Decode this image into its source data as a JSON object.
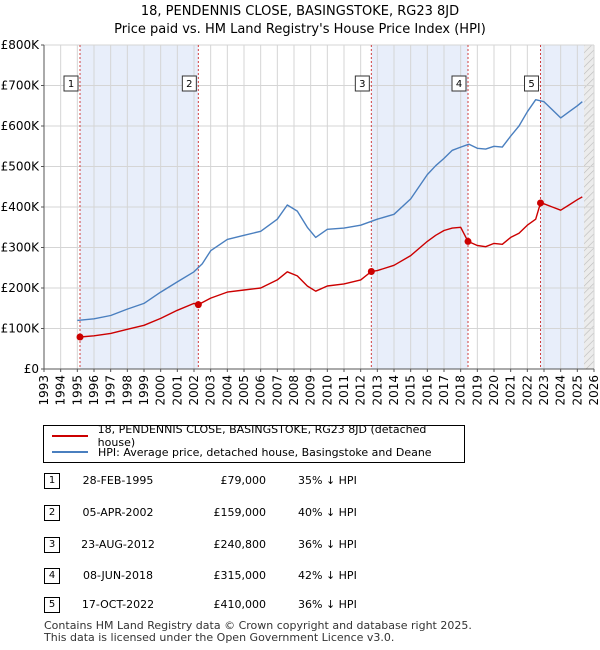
{
  "title_line1": "18, PENDENNIS CLOSE, BASINGSTOKE, RG23 8JD",
  "title_line2": "Price paid vs. HM Land Registry's House Price Index (HPI)",
  "chart_data": {
    "type": "line",
    "xlim": [
      1993,
      2026
    ],
    "ylim": [
      0,
      800000
    ],
    "x_ticks": [
      "1993",
      "1994",
      "1995",
      "1996",
      "1997",
      "1998",
      "1999",
      "2000",
      "2001",
      "2002",
      "2003",
      "2004",
      "2005",
      "2006",
      "2007",
      "2008",
      "2009",
      "2010",
      "2011",
      "2012",
      "2013",
      "2014",
      "2015",
      "2016",
      "2017",
      "2018",
      "2019",
      "2020",
      "2021",
      "2022",
      "2023",
      "2024",
      "2025",
      "2026"
    ],
    "y_ticks": [
      {
        "value": 0,
        "label": "£0"
      },
      {
        "value": 100000,
        "label": "£100K"
      },
      {
        "value": 200000,
        "label": "£200K"
      },
      {
        "value": 300000,
        "label": "£300K"
      },
      {
        "value": 400000,
        "label": "£400K"
      },
      {
        "value": 500000,
        "label": "£500K"
      },
      {
        "value": 600000,
        "label": "£600K"
      },
      {
        "value": 700000,
        "label": "£700K"
      },
      {
        "value": 800000,
        "label": "£800K"
      }
    ],
    "shaded_ranges": [
      [
        1995.16,
        2002.26
      ],
      [
        2012.64,
        2018.44
      ],
      [
        2022.79,
        2025.4
      ]
    ],
    "hatch_from": 2025.4,
    "series": [
      {
        "name": "HPI: Average price, detached house, Basingstoke and Deane",
        "color": "#4a7fbf",
        "points": [
          [
            1995.0,
            120000
          ],
          [
            1996.0,
            124000
          ],
          [
            1997.0,
            132000
          ],
          [
            1998.0,
            148000
          ],
          [
            1999.0,
            162000
          ],
          [
            2000.0,
            190000
          ],
          [
            2001.0,
            215000
          ],
          [
            2002.0,
            240000
          ],
          [
            2002.5,
            260000
          ],
          [
            2003.0,
            292000
          ],
          [
            2004.0,
            320000
          ],
          [
            2005.0,
            330000
          ],
          [
            2006.0,
            340000
          ],
          [
            2007.0,
            370000
          ],
          [
            2007.6,
            405000
          ],
          [
            2008.2,
            390000
          ],
          [
            2008.8,
            350000
          ],
          [
            2009.3,
            325000
          ],
          [
            2010.0,
            345000
          ],
          [
            2011.0,
            348000
          ],
          [
            2012.0,
            355000
          ],
          [
            2013.0,
            370000
          ],
          [
            2014.0,
            382000
          ],
          [
            2015.0,
            420000
          ],
          [
            2016.0,
            480000
          ],
          [
            2016.5,
            502000
          ],
          [
            2017.0,
            520000
          ],
          [
            2017.5,
            540000
          ],
          [
            2018.0,
            548000
          ],
          [
            2018.5,
            555000
          ],
          [
            2019.0,
            545000
          ],
          [
            2019.5,
            543000
          ],
          [
            2020.0,
            550000
          ],
          [
            2020.5,
            548000
          ],
          [
            2021.0,
            575000
          ],
          [
            2021.5,
            600000
          ],
          [
            2022.0,
            635000
          ],
          [
            2022.5,
            665000
          ],
          [
            2023.0,
            660000
          ],
          [
            2023.5,
            640000
          ],
          [
            2024.0,
            620000
          ],
          [
            2024.5,
            635000
          ],
          [
            2025.0,
            650000
          ],
          [
            2025.3,
            660000
          ]
        ]
      },
      {
        "name": "18, PENDENNIS CLOSE, BASINGSTOKE, RG23 8JD (detached house)",
        "color": "#cc0000",
        "points": [
          [
            1995.16,
            79000
          ],
          [
            1996.0,
            82000
          ],
          [
            1997.0,
            88000
          ],
          [
            1998.0,
            98000
          ],
          [
            1999.0,
            108000
          ],
          [
            2000.0,
            125000
          ],
          [
            2001.0,
            145000
          ],
          [
            2002.0,
            162000
          ],
          [
            2002.26,
            159000
          ],
          [
            2003.0,
            175000
          ],
          [
            2004.0,
            190000
          ],
          [
            2005.0,
            195000
          ],
          [
            2006.0,
            200000
          ],
          [
            2007.0,
            220000
          ],
          [
            2007.6,
            240000
          ],
          [
            2008.2,
            230000
          ],
          [
            2008.8,
            205000
          ],
          [
            2009.3,
            192000
          ],
          [
            2010.0,
            205000
          ],
          [
            2011.0,
            210000
          ],
          [
            2012.0,
            220000
          ],
          [
            2012.64,
            240800
          ],
          [
            2013.0,
            243000
          ],
          [
            2014.0,
            256000
          ],
          [
            2015.0,
            280000
          ],
          [
            2016.0,
            315000
          ],
          [
            2016.5,
            330000
          ],
          [
            2017.0,
            342000
          ],
          [
            2017.5,
            348000
          ],
          [
            2018.0,
            350000
          ],
          [
            2018.44,
            315000
          ],
          [
            2019.0,
            305000
          ],
          [
            2019.5,
            302000
          ],
          [
            2020.0,
            310000
          ],
          [
            2020.5,
            308000
          ],
          [
            2021.0,
            325000
          ],
          [
            2021.5,
            335000
          ],
          [
            2022.0,
            355000
          ],
          [
            2022.5,
            370000
          ],
          [
            2022.79,
            410000
          ],
          [
            2023.0,
            408000
          ],
          [
            2023.5,
            400000
          ],
          [
            2024.0,
            392000
          ],
          [
            2024.5,
            405000
          ],
          [
            2025.0,
            418000
          ],
          [
            2025.3,
            425000
          ]
        ]
      }
    ],
    "sale_markers": [
      {
        "label": "1",
        "x": 1995.16,
        "y": 79000
      },
      {
        "label": "2",
        "x": 2002.26,
        "y": 159000
      },
      {
        "label": "3",
        "x": 2012.64,
        "y": 240800
      },
      {
        "label": "4",
        "x": 2018.44,
        "y": 315000
      },
      {
        "label": "5",
        "x": 2022.79,
        "y": 410000
      }
    ]
  },
  "legend": {
    "red_label": "18, PENDENNIS CLOSE, BASINGSTOKE, RG23 8JD (detached house)",
    "blue_label": "HPI: Average price, detached house, Basingstoke and Deane",
    "red_color": "#cc0000",
    "blue_color": "#4a7fbf"
  },
  "sales": [
    {
      "num": "1",
      "date": "28-FEB-1995",
      "price": "£79,000",
      "hpi": "35% ↓ HPI"
    },
    {
      "num": "2",
      "date": "05-APR-2002",
      "price": "£159,000",
      "hpi": "40% ↓ HPI"
    },
    {
      "num": "3",
      "date": "23-AUG-2012",
      "price": "£240,800",
      "hpi": "36% ↓ HPI"
    },
    {
      "num": "4",
      "date": "08-JUN-2018",
      "price": "£315,000",
      "hpi": "42% ↓ HPI"
    },
    {
      "num": "5",
      "date": "17-OCT-2022",
      "price": "£410,000",
      "hpi": "36% ↓ HPI"
    }
  ],
  "footer_line1": "Contains HM Land Registry data © Crown copyright and database right 2025.",
  "footer_line2": "This data is licensed under the Open Government Licence v3.0."
}
